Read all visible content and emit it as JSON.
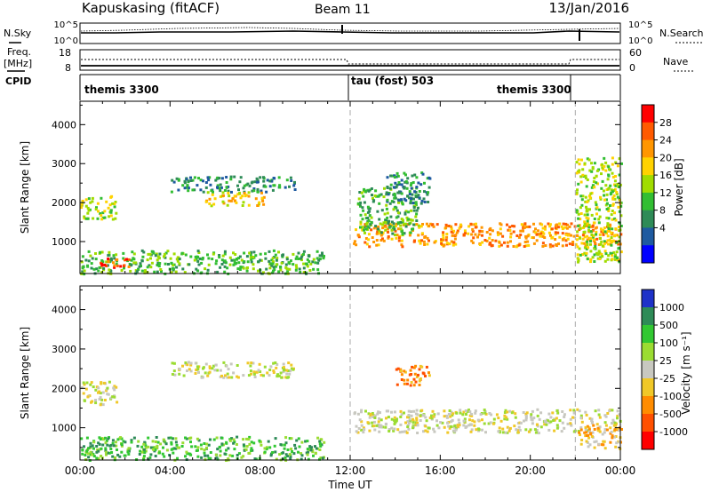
{
  "header": {
    "station": "Kapuskasing (fitACF)",
    "beam": "Beam 11",
    "date": "13/Jan/2016"
  },
  "noise_panel": {
    "left_label": "N.Sky",
    "right_label": "N.Search",
    "left_ticks": [
      "10^5",
      "10^0"
    ],
    "right_ticks": [
      "10^5",
      "10^0"
    ]
  },
  "freq_panel": {
    "left_label_1": "Freq.",
    "left_label_2": "[MHz]",
    "right_label": "Nave",
    "left_ticks": [
      "18",
      "8"
    ],
    "right_ticks": [
      "60",
      "0"
    ]
  },
  "cpid_panel": {
    "label": "CPID",
    "segments": [
      {
        "name": "themis 3300",
        "start_hour": 0,
        "end_hour": 12
      },
      {
        "name": "tau (fost) 503",
        "start_hour": 12,
        "end_hour": 22
      },
      {
        "name": "themis 3300",
        "start_hour": 22,
        "end_hour": 24
      }
    ]
  },
  "chart_data": [
    {
      "type": "heatmap",
      "panel": "power",
      "ylabel": "Slant Range [km]",
      "y_ticks": [
        1000,
        2000,
        3000,
        4000
      ],
      "ylim": [
        180,
        4600
      ],
      "xlim_hours": [
        0,
        24
      ],
      "colorbar": {
        "label": "Power [dB]",
        "ticks": [
          "28",
          "24",
          "20",
          "16",
          "12",
          "8",
          "4"
        ],
        "colors": [
          "#ff0000",
          "#ff5a00",
          "#ff9600",
          "#ffd200",
          "#a0dc00",
          "#32be32",
          "#2e8b57",
          "#1e5aa0",
          "#0000ff"
        ]
      },
      "scatter_regions": [
        {
          "t0": 0.0,
          "t1": 10.8,
          "r0": 200,
          "r1": 800,
          "color_index": 5
        },
        {
          "t0": 0.8,
          "t1": 2.2,
          "r0": 300,
          "r1": 600,
          "color_index": 1
        },
        {
          "t0": 0.0,
          "t1": 1.6,
          "r0": 1600,
          "r1": 2200,
          "color_index": 4
        },
        {
          "t0": 4.0,
          "t1": 9.5,
          "r0": 2300,
          "r1": 2700,
          "color_index": 6
        },
        {
          "t0": 5.5,
          "t1": 8.2,
          "r0": 1950,
          "r1": 2300,
          "color_index": 3
        },
        {
          "t0": 12.1,
          "t1": 24.0,
          "r0": 900,
          "r1": 1500,
          "color_index": 2
        },
        {
          "t0": 12.3,
          "t1": 15.0,
          "r0": 1200,
          "r1": 2400,
          "color_index": 5
        },
        {
          "t0": 13.5,
          "t1": 15.5,
          "r0": 2000,
          "r1": 2800,
          "color_index": 6
        },
        {
          "t0": 22.0,
          "t1": 24.0,
          "r0": 500,
          "r1": 3200,
          "color_index": 4
        }
      ]
    },
    {
      "type": "heatmap",
      "panel": "velocity",
      "ylabel": "Slant Range [km]",
      "xlabel": "Time UT",
      "x_ticks": [
        "00:00",
        "04:00",
        "08:00",
        "12:00",
        "16:00",
        "20:00",
        "00:00"
      ],
      "y_ticks": [
        1000,
        2000,
        3000,
        4000
      ],
      "ylim": [
        180,
        4600
      ],
      "xlim_hours": [
        0,
        24
      ],
      "colorbar": {
        "label": "Velocity [m s⁻¹]",
        "ticks": [
          "1000",
          "500",
          "100",
          "25",
          "-25",
          "-100",
          "-500",
          "-1000"
        ],
        "colors": [
          "#1e32c8",
          "#2e8b57",
          "#32c832",
          "#9bdc32",
          "#c8c8c0",
          "#f0c828",
          "#ff8c00",
          "#ff5000",
          "#ff0000"
        ]
      },
      "scatter_regions": [
        {
          "t0": 0.0,
          "t1": 10.8,
          "r0": 200,
          "r1": 800,
          "color_index": 2
        },
        {
          "t0": 0.0,
          "t1": 1.6,
          "r0": 1600,
          "r1": 2200,
          "color_index": 4
        },
        {
          "t0": 4.0,
          "t1": 9.5,
          "r0": 2300,
          "r1": 2700,
          "color_index": 4
        },
        {
          "t0": 12.1,
          "t1": 24.0,
          "r0": 900,
          "r1": 1500,
          "color_index": 4
        },
        {
          "t0": 14.0,
          "t1": 15.5,
          "r0": 2100,
          "r1": 2600,
          "color_index": 6
        },
        {
          "t0": 22.0,
          "t1": 24.0,
          "r0": 500,
          "r1": 1100,
          "color_index": 5
        }
      ]
    }
  ]
}
